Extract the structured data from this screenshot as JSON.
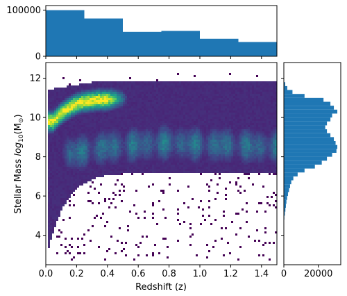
{
  "chart_data": [
    {
      "type": "heatmap",
      "panel": "main",
      "xlabel": "Redshift (z)",
      "ylabel_prefix": "Stellar Mass ",
      "ylabel_math": "log",
      "ylabel_sub": "10",
      "ylabel_paren_open": "(M",
      "ylabel_sun": "⊙",
      "ylabel_paren_close": ")",
      "xlim": [
        0.0,
        1.5
      ],
      "ylim": [
        2.5,
        12.8
      ],
      "xticks": [
        0.0,
        0.2,
        0.4,
        0.6,
        0.8,
        1.0,
        1.2,
        1.4
      ],
      "xtick_labels": [
        "0.0",
        "0.2",
        "0.4",
        "0.6",
        "0.8",
        "1.0",
        "1.2",
        "1.4"
      ],
      "yticks": [
        4,
        6,
        8,
        10,
        12
      ],
      "ytick_labels": [
        "4",
        "6",
        "8",
        "10",
        "12"
      ],
      "colormap": "viridis",
      "density_ridges": [
        {
          "name": "high-mass sequence",
          "x": [
            0.05,
            0.1,
            0.15,
            0.2,
            0.25,
            0.3,
            0.35,
            0.4,
            0.45
          ],
          "y": [
            9.8,
            10.2,
            10.5,
            10.7,
            10.8,
            10.85,
            10.9,
            10.9,
            10.95
          ],
          "peak": 1.0
        },
        {
          "name": "main sequence",
          "x": [
            0.2,
            0.4,
            0.6,
            0.8,
            1.0,
            1.2,
            1.4
          ],
          "y": [
            8.2,
            8.5,
            8.6,
            8.7,
            8.6,
            8.6,
            8.5
          ],
          "peak": 0.45
        }
      ]
    },
    {
      "type": "bar",
      "panel": "top-histogram",
      "orientation": "vertical",
      "bin_edges": [
        0.0,
        0.25,
        0.5,
        0.75,
        1.0,
        1.25,
        1.5
      ],
      "values": [
        100000,
        82000,
        53000,
        55000,
        38000,
        31000
      ],
      "ylim": [
        0,
        110000
      ],
      "yticks": [
        0,
        100000
      ],
      "ytick_labels": [
        "0",
        "100000"
      ],
      "color": "#1f77b4"
    },
    {
      "type": "bar",
      "panel": "right-histogram",
      "orientation": "horizontal",
      "bin_edges": [
        4.8,
        5.0,
        5.2,
        5.4,
        5.6,
        5.8,
        6.0,
        6.2,
        6.4,
        6.6,
        6.8,
        7.0,
        7.2,
        7.4,
        7.6,
        7.8,
        8.0,
        8.2,
        8.4,
        8.6,
        8.8,
        9.0,
        9.2,
        9.4,
        9.6,
        9.8,
        10.0,
        10.2,
        10.4,
        10.6,
        10.8,
        11.0,
        11.2,
        11.4,
        11.6,
        11.8
      ],
      "values": [
        300,
        600,
        900,
        1200,
        1500,
        1900,
        2400,
        3000,
        3600,
        4300,
        5500,
        8000,
        12000,
        18000,
        22000,
        25000,
        28000,
        30500,
        31000,
        30000,
        29000,
        27000,
        25000,
        24000,
        25000,
        27000,
        28000,
        31000,
        29000,
        27000,
        23000,
        12000,
        5000,
        2000,
        800
      ],
      "xlim": [
        0,
        33000
      ],
      "xticks": [
        0,
        20000
      ],
      "xtick_labels": [
        "0",
        "20000"
      ],
      "color": "#1f77b4"
    }
  ]
}
